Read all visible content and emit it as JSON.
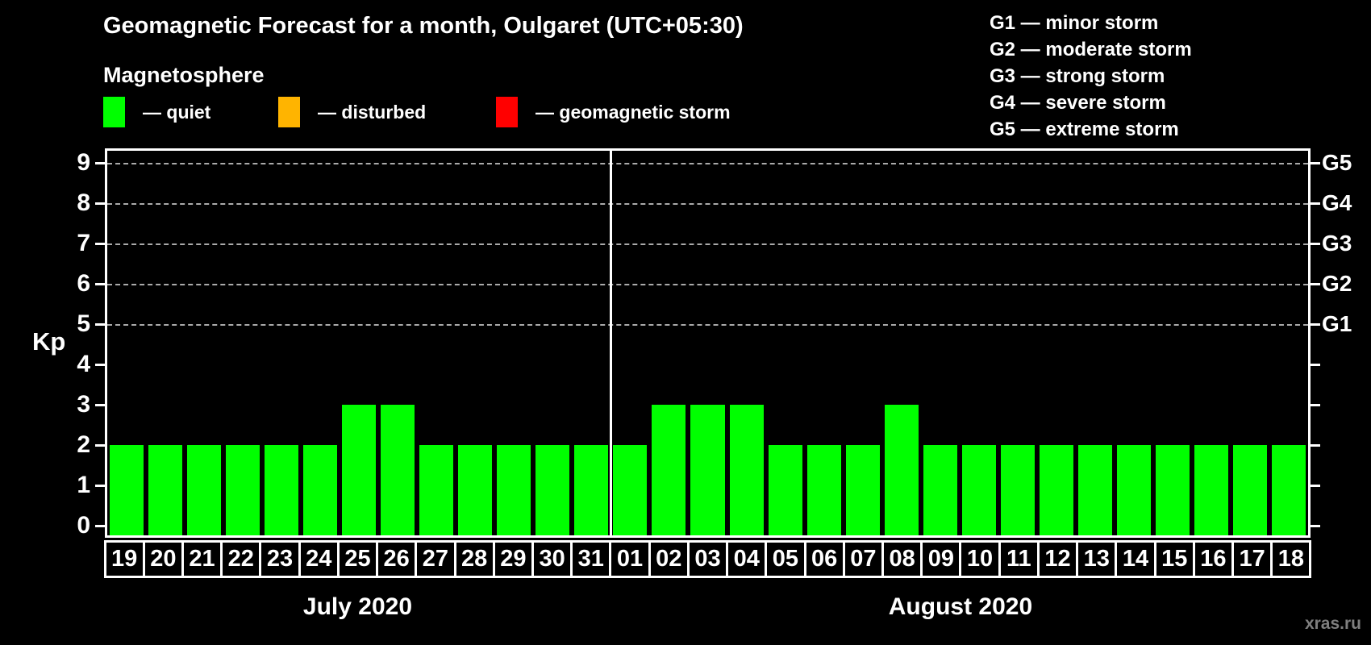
{
  "title": "Geomagnetic Forecast for a month, Oulgaret (UTC+05:30)",
  "legend": {
    "heading": "Magnetosphere",
    "items": [
      {
        "name": "quiet",
        "label": "— quiet",
        "color": "#00ff00"
      },
      {
        "name": "disturbed",
        "label": "— disturbed",
        "color": "#ffb400"
      },
      {
        "name": "geomagnetic-storm",
        "label": "— geomagnetic storm",
        "color": "#ff0000"
      }
    ]
  },
  "storm_scale": [
    "G1 — minor storm",
    "G2 — moderate storm",
    "G3 — strong storm",
    "G4 — severe storm",
    "G5 — extreme storm"
  ],
  "watermark": "xras.ru",
  "chart_data": {
    "type": "bar",
    "title": "Geomagnetic Forecast for a month, Oulgaret (UTC+05:30)",
    "xlabel": "",
    "ylabel": "Kp",
    "ylim": [
      0,
      9
    ],
    "y_ticks": [
      0,
      1,
      2,
      3,
      4,
      5,
      6,
      7,
      8,
      9
    ],
    "grid": "dashed horizontal lines at Kp 5-9 only",
    "gridline_kp": [
      5,
      6,
      7,
      8,
      9
    ],
    "right_axis": [
      {
        "kp": 5,
        "label": "G1"
      },
      {
        "kp": 6,
        "label": "G2"
      },
      {
        "kp": 7,
        "label": "G3"
      },
      {
        "kp": 8,
        "label": "G4"
      },
      {
        "kp": 9,
        "label": "G5"
      }
    ],
    "color_rule": {
      "quiet_below": 4,
      "disturbed_at": 4,
      "storm_from": 5
    },
    "groups": [
      {
        "month": "July 2020",
        "days": [
          "19",
          "20",
          "21",
          "22",
          "23",
          "24",
          "25",
          "26",
          "27",
          "28",
          "29",
          "30",
          "31"
        ],
        "values": [
          2,
          2,
          2,
          2,
          2,
          2,
          3,
          3,
          2,
          2,
          2,
          2,
          2
        ]
      },
      {
        "month": "August 2020",
        "days": [
          "01",
          "02",
          "03",
          "04",
          "05",
          "06",
          "07",
          "08",
          "09",
          "10",
          "11",
          "12",
          "13",
          "14",
          "15",
          "16",
          "17",
          "18"
        ],
        "values": [
          2,
          3,
          3,
          3,
          2,
          2,
          2,
          3,
          2,
          2,
          2,
          2,
          2,
          2,
          2,
          2,
          2,
          2
        ]
      }
    ]
  }
}
